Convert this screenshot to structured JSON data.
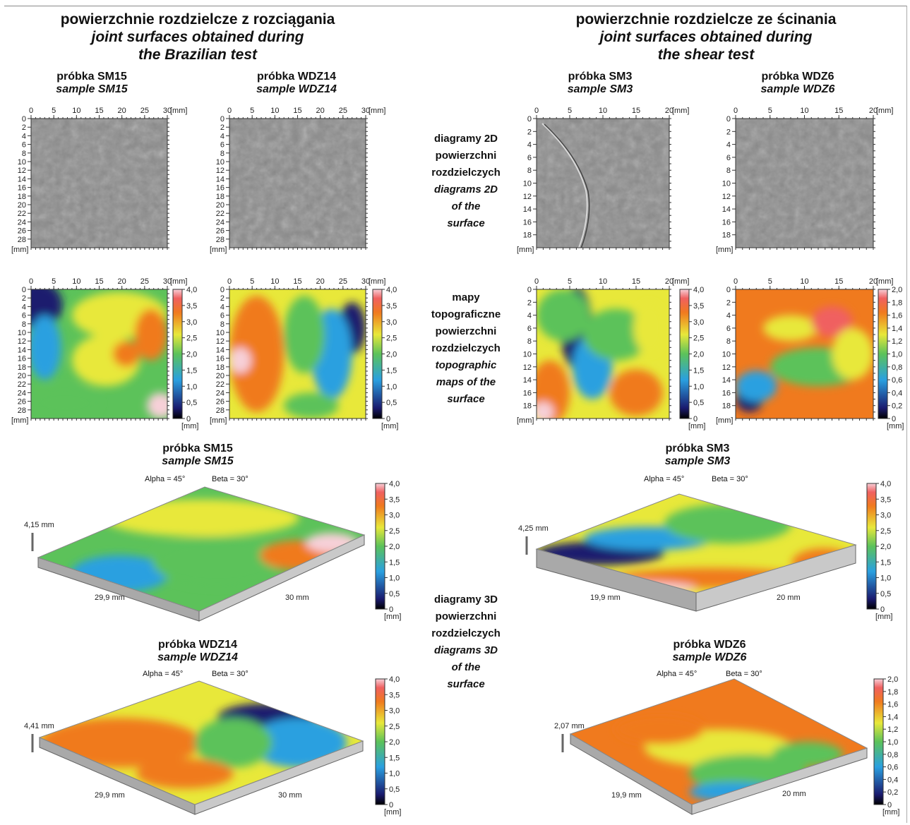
{
  "header_left": {
    "pl": "powierzchnie rozdzielcze z rozciągania",
    "en1": "joint surfaces obtained during",
    "en2": "the Brazilian test"
  },
  "header_right": {
    "pl": "powierzchnie rozdzielcze ze ścinania",
    "en1": "joint surfaces obtained during",
    "en2": "the shear test"
  },
  "samples": {
    "sm15": {
      "pl": "próbka SM15",
      "en": "sample SM15"
    },
    "wdz14": {
      "pl": "próbka WDZ14",
      "en": "sample WDZ14"
    },
    "sm3": {
      "pl": "próbka SM3",
      "en": "sample SM3"
    },
    "wdz6": {
      "pl": "próbka WDZ6",
      "en": "sample WDZ6"
    }
  },
  "mid_labels": {
    "d2": [
      "diagramy 2D",
      "powierzchni",
      "rozdzielczych",
      "diagrams 2D",
      "of the",
      "surface"
    ],
    "topo": [
      "mapy",
      "topograficzne",
      "powierzchni",
      "rozdzielczych",
      "topographic",
      "maps of the",
      "surface"
    ],
    "d3": [
      "diagramy 3D",
      "powierzchni",
      "rozdzielczych",
      "diagrams 3D",
      "of the",
      "surface"
    ]
  },
  "unit": "[mm]",
  "ticks": {
    "x30": [
      "0",
      "5",
      "10",
      "15",
      "20",
      "25",
      "30"
    ],
    "x20": [
      "0",
      "5",
      "10",
      "15",
      "20"
    ],
    "y30": [
      "0",
      "2",
      "4",
      "6",
      "8",
      "10",
      "12",
      "14",
      "16",
      "18",
      "20",
      "22",
      "24",
      "26",
      "28"
    ],
    "y20": [
      "0",
      "2",
      "4",
      "6",
      "8",
      "10",
      "12",
      "14",
      "16",
      "18"
    ]
  },
  "scale4": [
    "4,0",
    "3,5",
    "3,0",
    "2,5",
    "2,0",
    "1,5",
    "1,0",
    "0,5",
    "0"
  ],
  "scale2": [
    "2,0",
    "1,8",
    "1,6",
    "1,4",
    "1,2",
    "1,0",
    "0,8",
    "0,6",
    "0,4",
    "0,2",
    "0"
  ],
  "angles": {
    "alpha": "Alpha = 45°",
    "beta": "Beta = 30°"
  },
  "views3d": {
    "sm15": {
      "height": "4,15 mm",
      "w": "29,9 mm",
      "l": "30 mm"
    },
    "wdz14": {
      "height": "4,41 mm",
      "w": "29,9 mm",
      "l": "30 mm"
    },
    "sm3": {
      "height": "4,25 mm",
      "w": "19,9 mm",
      "l": "20 mm"
    },
    "wdz6": {
      "height": "2,07 mm",
      "w": "19,9 mm",
      "l": "20 mm"
    }
  },
  "colors": {
    "low": "#1a1a6e",
    "blue": "#2aa0e0",
    "green": "#5cc25a",
    "yellow": "#e8e83a",
    "orange": "#f07a1e",
    "high": "#f7d0d8"
  }
}
